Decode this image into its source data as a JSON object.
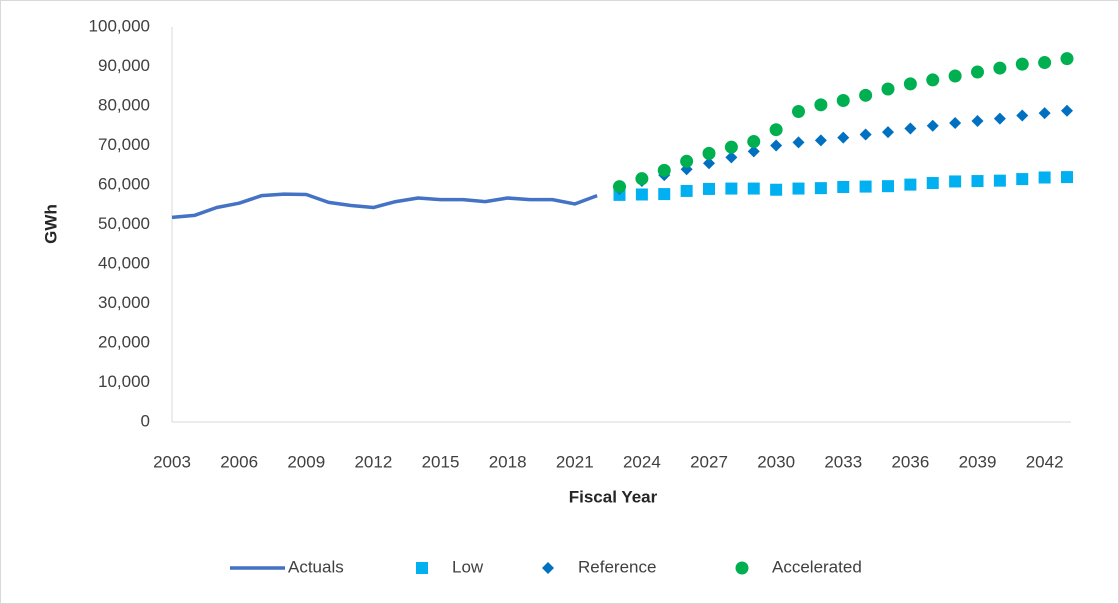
{
  "chart_data": {
    "type": "line",
    "x_label": "Fiscal Year",
    "y_label": "GWh",
    "x": [
      2003,
      2004,
      2005,
      2006,
      2007,
      2008,
      2009,
      2010,
      2011,
      2012,
      2013,
      2014,
      2015,
      2016,
      2017,
      2018,
      2019,
      2020,
      2021,
      2022,
      2023,
      2024,
      2025,
      2026,
      2027,
      2028,
      2029,
      2030,
      2031,
      2032,
      2033,
      2034,
      2035,
      2036,
      2037,
      2038,
      2039,
      2040,
      2041,
      2042,
      2043
    ],
    "xlim": [
      2003,
      2043
    ],
    "xticks": [
      2003,
      2006,
      2009,
      2012,
      2015,
      2018,
      2021,
      2024,
      2027,
      2030,
      2033,
      2036,
      2039,
      2042
    ],
    "ylim": [
      0,
      100000
    ],
    "yticks": [
      0,
      {
        "value": 10000,
        "label": "10,000"
      },
      {
        "value": 20000,
        "label": "20,000"
      },
      {
        "value": 30000,
        "label": "30,000"
      },
      {
        "value": 40000,
        "label": "40,000"
      },
      {
        "value": 50000,
        "label": "50,000"
      },
      {
        "value": 60000,
        "label": "60,000"
      },
      {
        "value": 70000,
        "label": "70,000"
      },
      {
        "value": 80000,
        "label": "80,000"
      },
      {
        "value": 90000,
        "label": "90,000"
      },
      {
        "value": 100000,
        "label": "100,000"
      }
    ],
    "grid": false,
    "legend": "bottom",
    "series": [
      {
        "name": "Actuals",
        "color": "#4472c4",
        "marker": "line",
        "values": [
          51800,
          52300,
          54300,
          55400,
          57300,
          57700,
          57600,
          55600,
          54800,
          54300,
          55800,
          56700,
          56300,
          56300,
          55800,
          56700,
          56300,
          56300,
          55200,
          57300,
          null,
          null,
          null,
          null,
          null,
          null,
          null,
          null,
          null,
          null,
          null,
          null,
          null,
          null,
          null,
          null,
          null,
          null,
          null,
          null,
          null
        ]
      },
      {
        "name": "Low",
        "color": "#00b0f0",
        "marker": "square",
        "values": [
          null,
          null,
          null,
          null,
          null,
          null,
          null,
          null,
          null,
          null,
          null,
          null,
          null,
          null,
          null,
          null,
          null,
          null,
          null,
          null,
          57500,
          57600,
          57700,
          58500,
          59000,
          59100,
          59100,
          58800,
          59100,
          59200,
          59500,
          59600,
          59700,
          60100,
          60500,
          60900,
          61000,
          61100,
          61500,
          61900,
          62000
        ]
      },
      {
        "name": "Reference",
        "color": "#0070c0",
        "marker": "diamond",
        "values": [
          null,
          null,
          null,
          null,
          null,
          null,
          null,
          null,
          null,
          null,
          null,
          null,
          null,
          null,
          null,
          null,
          null,
          null,
          null,
          null,
          59000,
          61000,
          62500,
          64000,
          65500,
          67000,
          68500,
          70000,
          70800,
          71300,
          72000,
          72800,
          73400,
          74300,
          75000,
          75700,
          76200,
          76800,
          77600,
          78200,
          78800
        ]
      },
      {
        "name": "Accelerated",
        "color": "#00b050",
        "marker": "circle",
        "values": [
          null,
          null,
          null,
          null,
          null,
          null,
          null,
          null,
          null,
          null,
          null,
          null,
          null,
          null,
          null,
          null,
          null,
          null,
          null,
          null,
          59600,
          61600,
          63700,
          66000,
          68000,
          69600,
          71000,
          74000,
          78600,
          80300,
          81400,
          82700,
          84300,
          85600,
          86600,
          87600,
          88600,
          89600,
          90600,
          91000,
          92000
        ]
      }
    ]
  }
}
